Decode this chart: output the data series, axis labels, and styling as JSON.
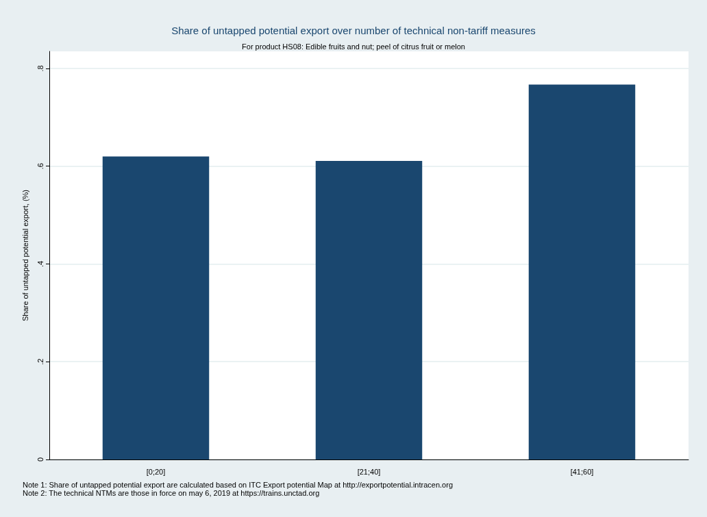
{
  "chart_data": {
    "type": "bar",
    "title": "Share of untapped potential export over number of technical non-tariff measures",
    "subtitle": "For product HS08: Edible fruits and nut; peel of citrus fruit or melon",
    "ylabel": "Share of untapped potential export, (%)",
    "categories": [
      "[0;20]",
      "[21;40]",
      "[41;60]"
    ],
    "values": [
      0.62,
      0.611,
      0.767
    ],
    "color": "#1a476f",
    "ylim": [
      0,
      0.835
    ],
    "yticks": [
      0,
      {
        "value": 0.2,
        "label": ".2"
      },
      {
        "value": 0.4,
        "label": ".4"
      },
      {
        "value": 0.6,
        "label": ".6"
      },
      {
        "value": 0.8,
        "label": ".8"
      }
    ],
    "grid": "y",
    "annotations": [
      "Note 1: Share of untapped potential export are calculated based on ITC Export potential Map at http://exportpotential.intracen.org",
      "Note 2: The technical NTMs are those in force on may 6, 2019 at https://trains.unctad.org"
    ]
  }
}
